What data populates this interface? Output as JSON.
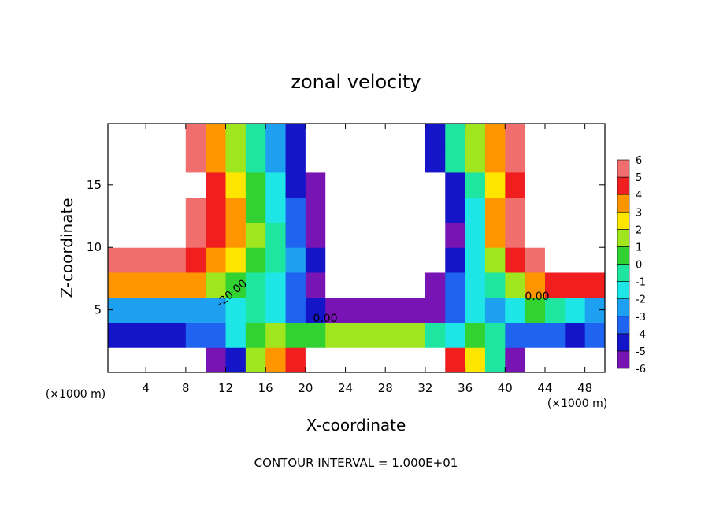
{
  "chart_data": {
    "type": "contour",
    "title": "zonal velocity",
    "x_label": "X-coordinate",
    "y_label": "Z-coordinate",
    "x_unit_labels": [
      "(×1000 m)",
      "(×1000 m)"
    ],
    "footnote": "CONTOUR INTERVAL = 1.000E+01",
    "annotations": [
      "-20.00",
      "0.00",
      "0.00"
    ],
    "x": [
      1,
      3,
      5,
      7,
      9,
      11,
      13,
      15,
      17,
      19,
      21,
      23,
      25,
      27,
      29,
      31,
      33,
      35,
      37,
      39,
      41,
      43,
      45,
      47,
      49
    ],
    "y": [
      1,
      3,
      5,
      7,
      9,
      11,
      13,
      15,
      17,
      19
    ],
    "values": [
      [
        -9,
        -9,
        -9,
        -9,
        -9,
        -5,
        -4,
        2,
        4,
        5,
        9,
        9,
        9,
        9,
        9,
        9,
        9,
        5,
        3,
        0,
        -5,
        -9,
        -9,
        -9,
        -9
      ],
      [
        -4,
        -4,
        -4,
        -4,
        -3.5,
        -3,
        -1,
        1,
        2,
        1,
        0.5,
        1.5,
        1.5,
        1.5,
        1.5,
        1.5,
        0,
        -1,
        1,
        -0.5,
        -3,
        -3.5,
        -3,
        -4,
        -3
      ],
      [
        -2.5,
        -2.5,
        -2.5,
        -2,
        -2,
        -2,
        -1,
        0,
        -1.5,
        -3,
        -4.5,
        -5,
        -5,
        -5,
        -5,
        -5,
        -5,
        -3,
        -1,
        -2,
        -1,
        0.5,
        -0.5,
        -1.5,
        -2
      ],
      [
        3.5,
        3.5,
        3.5,
        3.5,
        3.5,
        2,
        1,
        0,
        -1,
        -3,
        -5,
        -9,
        -9,
        -9,
        -9,
        -9,
        -5,
        -3,
        -1.5,
        0,
        2,
        4,
        5,
        5,
        5
      ],
      [
        5.8,
        5.8,
        6,
        6,
        5,
        4,
        3,
        1,
        -0.5,
        -2.5,
        -4.5,
        -9,
        -9,
        -9,
        -9,
        -9,
        -9,
        -4,
        -1.5,
        2,
        4.5,
        5.8,
        9,
        9,
        9
      ],
      [
        9,
        9,
        9,
        9,
        6,
        5,
        4,
        1.5,
        -0.5,
        -3,
        -5,
        -9,
        -9,
        -9,
        -9,
        -9,
        -9,
        -5,
        -1,
        3.5,
        5.5,
        9,
        9,
        9,
        9
      ],
      [
        9,
        9,
        9,
        9,
        6,
        5,
        3.5,
        1,
        -1,
        -3.5,
        -5,
        -9,
        -9,
        -9,
        -9,
        -9,
        -9,
        -4.5,
        -1,
        3.5,
        5.5,
        9,
        9,
        9,
        9
      ],
      [
        9,
        9,
        9,
        9,
        6.5,
        5,
        3,
        0.5,
        -1.5,
        -4,
        -5.5,
        -9,
        -9,
        -9,
        -9,
        -9,
        -9,
        -4,
        -0.5,
        3,
        5,
        9,
        9,
        9,
        9
      ],
      [
        9,
        9,
        9,
        9,
        5.5,
        4,
        2,
        0,
        -2,
        -4.5,
        -9,
        -9,
        -9,
        -9,
        -9,
        -9,
        -4,
        -0.5,
        1.5,
        4,
        5.5,
        9,
        9,
        9,
        9
      ],
      [
        9,
        9,
        9,
        9,
        5.5,
        4,
        2,
        0,
        -2.5,
        -4.5,
        -9,
        -9,
        -9,
        -9,
        -9,
        -9,
        -4,
        -0.5,
        1.5,
        4,
        5.5,
        9,
        9,
        9,
        9
      ]
    ],
    "xlim": [
      0.2,
      50
    ],
    "ylim": [
      0,
      19.9
    ],
    "xticks": [
      4,
      8,
      12,
      16,
      20,
      24,
      28,
      32,
      36,
      40,
      44,
      48
    ],
    "yticks": [
      5,
      10,
      15
    ],
    "colorbar": {
      "levels": [
        -6,
        -5,
        -4,
        -3,
        -2,
        -1,
        0,
        1,
        2,
        3,
        4,
        5,
        6
      ],
      "colors": [
        "#7814b4",
        "#1414c8",
        "#1e64f0",
        "#1ea0f0",
        "#1ee6e6",
        "#1ee6a0",
        "#32d232",
        "#a0e61e",
        "#ffe600",
        "#ff9600",
        "#f01e1e",
        "#f06e6e",
        "#f7a8a8"
      ]
    }
  }
}
